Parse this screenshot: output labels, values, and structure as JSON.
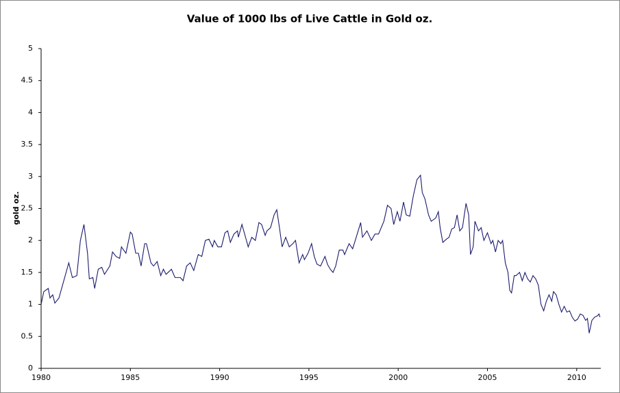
{
  "chart_data": {
    "type": "line",
    "title": "Value of 1000 lbs of Live Cattle in Gold oz.",
    "y_label": "gold oz.",
    "color": "#1a1a6e",
    "grid": false,
    "x": [
      1980.0,
      1980.15,
      1980.4,
      1980.5,
      1980.65,
      1980.77,
      1981.0,
      1981.2,
      1981.55,
      1981.75,
      1982.0,
      1982.2,
      1982.4,
      1982.6,
      1982.7,
      1982.9,
      1983.0,
      1983.2,
      1983.4,
      1983.55,
      1983.85,
      1984.0,
      1984.2,
      1984.4,
      1984.5,
      1984.75,
      1985.0,
      1985.1,
      1985.3,
      1985.45,
      1985.6,
      1985.8,
      1985.9,
      1986.15,
      1986.3,
      1986.5,
      1986.7,
      1986.85,
      1987.0,
      1987.3,
      1987.5,
      1987.8,
      1987.95,
      1988.15,
      1988.35,
      1988.55,
      1988.8,
      1989.0,
      1989.2,
      1989.4,
      1989.6,
      1989.7,
      1989.9,
      1990.1,
      1990.3,
      1990.45,
      1990.6,
      1990.8,
      1991.0,
      1991.05,
      1991.25,
      1991.45,
      1991.6,
      1991.8,
      1992.0,
      1992.2,
      1992.35,
      1992.55,
      1992.65,
      1992.85,
      1993.05,
      1993.2,
      1993.35,
      1993.5,
      1993.7,
      1993.9,
      1994.1,
      1994.25,
      1994.45,
      1994.65,
      1994.75,
      1994.95,
      1995.15,
      1995.3,
      1995.45,
      1995.65,
      1995.9,
      1996.05,
      1996.2,
      1996.35,
      1996.5,
      1996.7,
      1996.9,
      1997.0,
      1997.25,
      1997.45,
      1997.65,
      1997.9,
      1998.0,
      1998.25,
      1998.5,
      1998.7,
      1998.9,
      1999.2,
      1999.4,
      1999.6,
      1999.75,
      1999.95,
      2000.1,
      2000.3,
      2000.45,
      2000.65,
      2000.85,
      2001.05,
      2001.25,
      2001.35,
      2001.5,
      2001.7,
      2001.85,
      2002.1,
      2002.25,
      2002.35,
      2002.5,
      2002.7,
      2002.85,
      2003.0,
      2003.15,
      2003.3,
      2003.45,
      2003.6,
      2003.8,
      2003.95,
      2004.05,
      2004.2,
      2004.3,
      2004.5,
      2004.65,
      2004.8,
      2005.0,
      2005.2,
      2005.3,
      2005.45,
      2005.6,
      2005.75,
      2005.85,
      2006.0,
      2006.15,
      2006.25,
      2006.35,
      2006.5,
      2006.6,
      2006.8,
      2006.95,
      2007.1,
      2007.25,
      2007.4,
      2007.55,
      2007.7,
      2007.85,
      2008.0,
      2008.15,
      2008.3,
      2008.45,
      2008.6,
      2008.7,
      2008.85,
      2009.0,
      2009.15,
      2009.3,
      2009.45,
      2009.6,
      2009.75,
      2009.9,
      2010.05,
      2010.2,
      2010.35,
      2010.5,
      2010.6,
      2010.7,
      2010.85,
      2011.0,
      2011.15,
      2011.25,
      2011.3
    ],
    "values": [
      1.0,
      1.2,
      1.25,
      1.1,
      1.15,
      1.02,
      1.1,
      1.3,
      1.65,
      1.42,
      1.45,
      2.0,
      2.25,
      1.8,
      1.4,
      1.42,
      1.25,
      1.55,
      1.58,
      1.47,
      1.6,
      1.82,
      1.75,
      1.72,
      1.9,
      1.8,
      2.13,
      2.1,
      1.8,
      1.8,
      1.6,
      1.95,
      1.95,
      1.65,
      1.6,
      1.67,
      1.45,
      1.55,
      1.47,
      1.55,
      1.42,
      1.42,
      1.37,
      1.6,
      1.65,
      1.53,
      1.78,
      1.75,
      2.0,
      2.02,
      1.9,
      2.0,
      1.9,
      1.9,
      2.12,
      2.15,
      1.97,
      2.1,
      2.15,
      2.05,
      2.25,
      2.05,
      1.9,
      2.05,
      2.0,
      2.28,
      2.25,
      2.08,
      2.15,
      2.2,
      2.4,
      2.48,
      2.2,
      1.9,
      2.05,
      1.9,
      1.95,
      2.0,
      1.65,
      1.78,
      1.7,
      1.8,
      1.95,
      1.75,
      1.63,
      1.6,
      1.75,
      1.62,
      1.55,
      1.5,
      1.6,
      1.85,
      1.85,
      1.78,
      1.95,
      1.87,
      2.05,
      2.28,
      2.05,
      2.15,
      2.0,
      2.1,
      2.1,
      2.3,
      2.55,
      2.5,
      2.25,
      2.45,
      2.3,
      2.6,
      2.4,
      2.38,
      2.7,
      2.95,
      3.02,
      2.75,
      2.65,
      2.4,
      2.3,
      2.35,
      2.45,
      2.2,
      1.97,
      2.02,
      2.05,
      2.18,
      2.2,
      2.4,
      2.15,
      2.2,
      2.58,
      2.4,
      1.78,
      1.9,
      2.3,
      2.15,
      2.2,
      2.0,
      2.12,
      1.95,
      2.0,
      1.82,
      2.0,
      1.95,
      2.0,
      1.65,
      1.5,
      1.22,
      1.18,
      1.45,
      1.45,
      1.5,
      1.37,
      1.5,
      1.4,
      1.35,
      1.45,
      1.4,
      1.3,
      1.0,
      0.9,
      1.05,
      1.15,
      1.05,
      1.2,
      1.15,
      1.0,
      0.88,
      0.97,
      0.88,
      0.9,
      0.8,
      0.74,
      0.77,
      0.85,
      0.83,
      0.75,
      0.78,
      0.55,
      0.75,
      0.8,
      0.82,
      0.85,
      0.8
    ],
    "xlim": [
      1980,
      2011.35
    ],
    "xticks": [
      1980,
      1985,
      1990,
      1995,
      2000,
      2005,
      2010
    ],
    "ylim": [
      0,
      5
    ],
    "yticks": [
      0,
      0.5,
      1,
      1.5,
      2,
      2.5,
      3,
      3.5,
      4,
      4.5,
      5
    ]
  }
}
